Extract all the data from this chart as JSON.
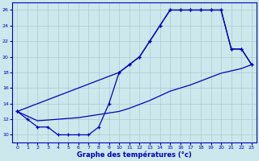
{
  "bg_color": "#cce8ec",
  "line_color": "#0000bb",
  "grid_color": "#aaccd0",
  "xlabel": "Graphe des températures (°c)",
  "xlabel_color": "#0000bb",
  "xlim": [
    -0.5,
    23.5
  ],
  "ylim": [
    9,
    27
  ],
  "yticks": [
    10,
    12,
    14,
    16,
    18,
    20,
    22,
    24,
    26
  ],
  "xticks": [
    0,
    1,
    2,
    3,
    4,
    5,
    6,
    7,
    8,
    9,
    10,
    11,
    12,
    13,
    14,
    15,
    16,
    17,
    18,
    19,
    20,
    21,
    22,
    23
  ],
  "line1_x": [
    0,
    1,
    2,
    3,
    4,
    5,
    6,
    7,
    8,
    9,
    10,
    11,
    12,
    13,
    14,
    15,
    16,
    17,
    18,
    19,
    20,
    21,
    22,
    23
  ],
  "line1_y": [
    13,
    12,
    11,
    11,
    10,
    10,
    10,
    10,
    11,
    14,
    18,
    19,
    20,
    22,
    24,
    26,
    26,
    26,
    26,
    26,
    26,
    21,
    21,
    19
  ],
  "line2_x": [
    0,
    10,
    11,
    12,
    13,
    14,
    15,
    16,
    17,
    18,
    19,
    20,
    21,
    22,
    23
  ],
  "line2_y": [
    13,
    18,
    19,
    20,
    22,
    24,
    26,
    26,
    26,
    26,
    26,
    26,
    21,
    21,
    19
  ],
  "line3_x": [
    0,
    1,
    2,
    3,
    4,
    5,
    6,
    7,
    8,
    9,
    10,
    11,
    12,
    13,
    14,
    15,
    16,
    17,
    18,
    19,
    20,
    21,
    22,
    23
  ],
  "line3_y": [
    13,
    12.4,
    11.8,
    11.9,
    12.0,
    12.1,
    12.2,
    12.4,
    12.6,
    12.8,
    13.0,
    13.4,
    13.9,
    14.4,
    15.0,
    15.6,
    16.0,
    16.4,
    16.9,
    17.4,
    17.9,
    18.2,
    18.5,
    19.0
  ]
}
